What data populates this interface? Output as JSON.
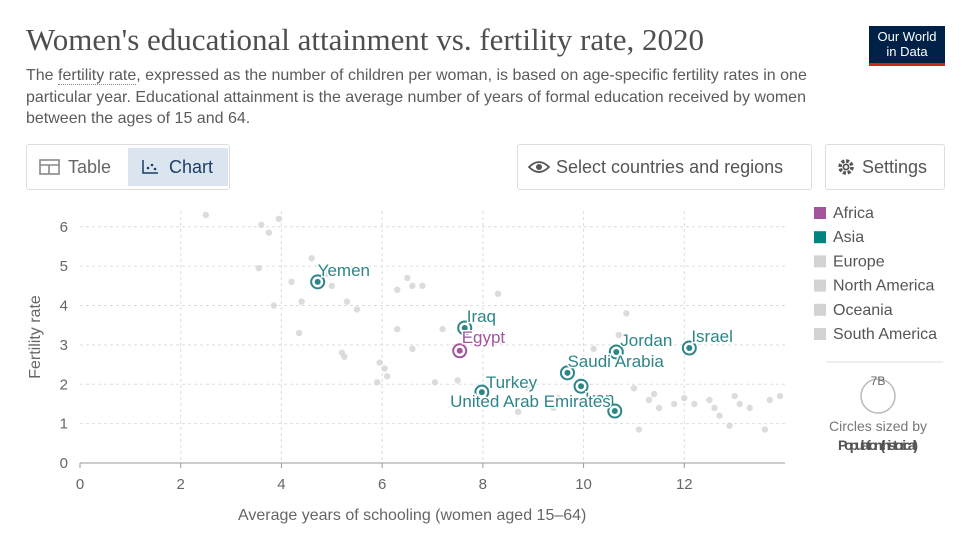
{
  "header": {
    "title": "Women's educational attainment vs. fertility rate, 2020",
    "subtitle": [
      "The ",
      "fertility rate",
      ", expressed as the number of children per woman, is based on age-specific fertility rates in one particular year. Educational attainment is the average number of years of formal education received by women between the ages of 15 and 64."
    ],
    "logo": [
      "Our World",
      "in Data"
    ]
  },
  "controls": {
    "tabs": [
      "Table",
      "Chart"
    ],
    "select": "Select countries and regions",
    "settings": "Settings"
  },
  "chart_data": {
    "type": "scatter",
    "xlabel": "Average years of schooling (women aged 15–64)",
    "ylabel": "Fertility rate",
    "xlim": [
      0,
      14
    ],
    "ylim": [
      0,
      6.4
    ],
    "xticks": [
      0,
      2,
      4,
      6,
      8,
      10,
      12
    ],
    "yticks": [
      0,
      1,
      2,
      3,
      4,
      5,
      6
    ],
    "grid": true,
    "legend": [
      {
        "name": "Africa",
        "color": "#a2559c"
      },
      {
        "name": "Asia",
        "color": "#00847e"
      },
      {
        "name": "Europe",
        "color": "#d3d3d3"
      },
      {
        "name": "North America",
        "color": "#d3d3d3"
      },
      {
        "name": "Oceania",
        "color": "#d3d3d3"
      },
      {
        "name": "South America",
        "color": "#d3d3d3"
      }
    ],
    "series": [
      {
        "name": "Yemen",
        "color": "#2d8587",
        "x": 4.72,
        "y": 4.6
      },
      {
        "name": "Iraq",
        "color": "#2d8587",
        "x": 7.64,
        "y": 3.43
      },
      {
        "name": "Egypt",
        "color": "#a2559c",
        "x": 7.54,
        "y": 2.85
      },
      {
        "name": "Jordan",
        "color": "#2d8587",
        "x": 10.65,
        "y": 2.82
      },
      {
        "name": "Israel",
        "color": "#2d8587",
        "x": 12.1,
        "y": 2.92
      },
      {
        "name": "Saudi Arabia",
        "color": "#2d8587",
        "x": 9.68,
        "y": 2.29
      },
      {
        "name": "Iran",
        "color": "#2d8587",
        "x": 9.95,
        "y": 1.95
      },
      {
        "name": "Turkey",
        "color": "#2d8587",
        "x": 7.98,
        "y": 1.8
      },
      {
        "name": "United Arab Emirates",
        "color": "#2d8587",
        "x": 10.62,
        "y": 1.32
      }
    ],
    "background": {
      "color": "#d3d3d3",
      "x": [
        2.5,
        3.6,
        3.75,
        3.95,
        3.55,
        4.2,
        4.4,
        4.6,
        4.9,
        5.0,
        5.3,
        5.5,
        3.85,
        4.35,
        5.2,
        5.25,
        5.9,
        5.95,
        6.05,
        6.1,
        6.3,
        6.3,
        6.5,
        6.6,
        6.6,
        6.8,
        7.2,
        7.5,
        8.2,
        8.3,
        8.9,
        9.4,
        9.5,
        10.2,
        10.7,
        10.85,
        11.0,
        11.1,
        11.3,
        11.5,
        11.8,
        12.0,
        12.2,
        12.5,
        12.6,
        12.9,
        13.0,
        13.1,
        13.3,
        13.6,
        13.7,
        13.9,
        12.7,
        11.4,
        7.05,
        8.7,
        8.35
      ],
      "y": [
        6.3,
        6.05,
        5.85,
        6.2,
        4.95,
        4.6,
        4.1,
        5.2,
        4.8,
        4.5,
        4.1,
        3.9,
        4.0,
        3.3,
        2.8,
        2.7,
        2.05,
        2.55,
        2.4,
        2.2,
        3.4,
        4.4,
        4.7,
        4.5,
        2.9,
        4.5,
        3.4,
        2.1,
        1.6,
        4.3,
        1.9,
        1.4,
        1.65,
        2.9,
        3.25,
        3.8,
        1.9,
        0.85,
        1.6,
        1.4,
        1.5,
        1.65,
        1.5,
        1.6,
        1.4,
        0.95,
        1.7,
        1.5,
        1.4,
        0.85,
        1.6,
        1.7,
        1.2,
        1.75,
        2.05,
        1.3,
        3.1
      ]
    },
    "size_legend": {
      "label": "7B",
      "title": "Circles sized by",
      "variable": "Population (historical)"
    }
  }
}
